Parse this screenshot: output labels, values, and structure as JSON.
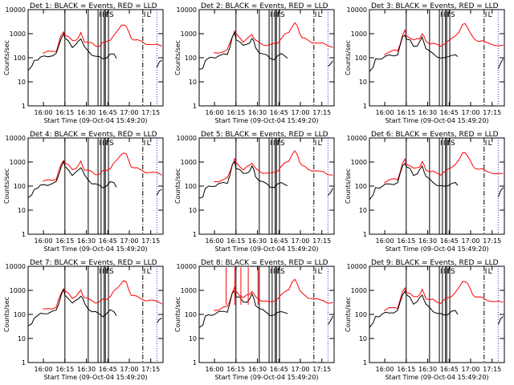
{
  "figure": {
    "background": "#ffffff",
    "colors": {
      "events": "#000000",
      "lld": "#ff0000",
      "markers": "#000000",
      "frame": "#000000"
    }
  },
  "chart_data": [
    {
      "type": "line",
      "title": "Det 1: BLACK = Events, RED = LLD",
      "xlabel": "Start Time (09-Oct-04 15:49:20)",
      "ylabel": "Counts/sec",
      "yscale": "log",
      "ylim": [
        1,
        10000
      ],
      "x_ticks": [
        "16:00",
        "16:15",
        "16:30",
        "16:45",
        "17:00",
        "17:15"
      ],
      "y_ticks": [
        "1",
        "10",
        "100",
        "1000",
        "10000"
      ],
      "marker_labels": [
        "I",
        "I",
        "I",
        "I",
        "S",
        "I",
        "L"
      ],
      "series": [
        {
          "name": "Events",
          "color": "#000000"
        },
        {
          "name": "LLD",
          "color": "#ff0000"
        }
      ]
    },
    {
      "type": "line",
      "title": "Det 2: BLACK = Events, RED = LLD",
      "xlabel": "Start Time (09-Oct-04 15:49:20)",
      "ylabel": "Counts/sec",
      "yscale": "log",
      "ylim": [
        1,
        10000
      ],
      "x_ticks": [
        "16:00",
        "16:15",
        "16:30",
        "16:45",
        "17:00",
        "17:15"
      ],
      "y_ticks": [
        "1",
        "10",
        "100",
        "1000",
        "10000"
      ],
      "marker_labels": [
        "I",
        "I",
        "I",
        "I",
        "S",
        "I",
        "L"
      ],
      "series": [
        {
          "name": "Events",
          "color": "#000000"
        },
        {
          "name": "LLD",
          "color": "#ff0000"
        }
      ]
    },
    {
      "type": "line",
      "title": "Det 3: BLACK = Events, RED = LLD",
      "xlabel": "Start Time (09-Oct-04 15:49:20)",
      "ylabel": "Counts/sec",
      "yscale": "log",
      "ylim": [
        1,
        10000
      ],
      "x_ticks": [
        "16:00",
        "16:15",
        "16:30",
        "16:45",
        "17:00",
        "17:15"
      ],
      "y_ticks": [
        "1",
        "10",
        "100",
        "1000",
        "10000"
      ],
      "marker_labels": [
        "I",
        "I",
        "I",
        "I",
        "S",
        "I",
        "L"
      ],
      "series": [
        {
          "name": "Events",
          "color": "#000000"
        },
        {
          "name": "LLD",
          "color": "#ff0000"
        }
      ]
    },
    {
      "type": "line",
      "title": "Det 4: BLACK = Events, RED = LLD",
      "xlabel": "Start Time (09-Oct-04 15:49:20)",
      "ylabel": "Counts/sec",
      "yscale": "log",
      "ylim": [
        1,
        10000
      ],
      "x_ticks": [
        "16:00",
        "16:15",
        "16:30",
        "16:45",
        "17:00",
        "17:15"
      ],
      "y_ticks": [
        "1",
        "10",
        "100",
        "1000",
        "10000"
      ],
      "marker_labels": [
        "I",
        "I",
        "I",
        "I",
        "S",
        "I",
        "L"
      ],
      "series": [
        {
          "name": "Events",
          "color": "#000000"
        },
        {
          "name": "LLD",
          "color": "#ff0000"
        }
      ]
    },
    {
      "type": "line",
      "title": "Det 5: BLACK = Events, RED = LLD",
      "xlabel": "Start Time (09-Oct-04 15:49:20)",
      "ylabel": "Counts/sec",
      "yscale": "log",
      "ylim": [
        1,
        10000
      ],
      "x_ticks": [
        "16:00",
        "16:15",
        "16:30",
        "16:45",
        "17:00",
        "17:15"
      ],
      "y_ticks": [
        "1",
        "10",
        "100",
        "1000",
        "10000"
      ],
      "marker_labels": [
        "I",
        "I",
        "I",
        "I",
        "S",
        "I",
        "L"
      ],
      "series": [
        {
          "name": "Events",
          "color": "#000000"
        },
        {
          "name": "LLD",
          "color": "#ff0000"
        }
      ]
    },
    {
      "type": "line",
      "title": "Det 6: BLACK = Events, RED = LLD",
      "xlabel": "Start Time (09-Oct-04 15:49:20)",
      "ylabel": "Counts/sec",
      "yscale": "log",
      "ylim": [
        1,
        10000
      ],
      "x_ticks": [
        "16:00",
        "16:15",
        "16:30",
        "16:45",
        "17:00",
        "17:15"
      ],
      "y_ticks": [
        "1",
        "10",
        "100",
        "1000",
        "10000"
      ],
      "marker_labels": [
        "I",
        "I",
        "I",
        "I",
        "S",
        "I",
        "L"
      ],
      "series": [
        {
          "name": "Events",
          "color": "#000000"
        },
        {
          "name": "LLD",
          "color": "#ff0000"
        }
      ]
    },
    {
      "type": "line",
      "title": "Det 7: BLACK = Events, RED = LLD",
      "xlabel": "Start Time (09-Oct-04 15:49:20)",
      "ylabel": "Counts/sec",
      "yscale": "log",
      "ylim": [
        1,
        10000
      ],
      "x_ticks": [
        "16:00",
        "16:15",
        "16:30",
        "16:45",
        "17:00",
        "17:15"
      ],
      "y_ticks": [
        "1",
        "10",
        "100",
        "1000",
        "10000"
      ],
      "marker_labels": [
        "I",
        "I",
        "I",
        "I",
        "S",
        "I",
        "L"
      ],
      "series": [
        {
          "name": "Events",
          "color": "#000000"
        },
        {
          "name": "LLD",
          "color": "#ff0000"
        }
      ]
    },
    {
      "type": "line",
      "title": "Det 8: BLACK = Events, RED = LLD",
      "xlabel": "Start Time (09-Oct-04 15:49:20)",
      "ylabel": "Counts/sec",
      "yscale": "log",
      "ylim": [
        1,
        10000
      ],
      "x_ticks": [
        "16:00",
        "16:15",
        "16:30",
        "16:45",
        "17:00",
        "17:15"
      ],
      "y_ticks": [
        "1",
        "10",
        "100",
        "1000",
        "10000"
      ],
      "marker_labels": [
        "I",
        "I",
        "I",
        "I",
        "S",
        "I",
        "L"
      ],
      "series": [
        {
          "name": "Events",
          "color": "#000000"
        },
        {
          "name": "LLD",
          "color": "#ff0000"
        }
      ]
    },
    {
      "type": "line",
      "title": "Det 9: BLACK = Events, RED = LLD",
      "xlabel": "Start Time (09-Oct-04 15:49:20)",
      "ylabel": "Counts/sec",
      "yscale": "log",
      "ylim": [
        1,
        10000
      ],
      "x_ticks": [
        "16:00",
        "16:15",
        "16:30",
        "16:45",
        "17:00",
        "17:15"
      ],
      "y_ticks": [
        "1",
        "10",
        "100",
        "1000",
        "10000"
      ],
      "marker_labels": [
        "I",
        "I",
        "I",
        "I",
        "S",
        "I",
        "L"
      ],
      "series": [
        {
          "name": "Events",
          "color": "#000000"
        },
        {
          "name": "LLD",
          "color": "#ff0000"
        }
      ]
    }
  ],
  "shared_curves": {
    "lld_points": [
      [
        15.2,
        150
      ],
      [
        15.6,
        170
      ],
      [
        16.0,
        190
      ],
      [
        16.3,
        200
      ],
      [
        16.5,
        400
      ],
      [
        16.7,
        800
      ],
      [
        16.9,
        1300
      ],
      [
        17.0,
        900
      ],
      [
        17.3,
        700
      ],
      [
        17.6,
        500
      ],
      [
        17.9,
        600
      ],
      [
        18.1,
        700
      ],
      [
        18.3,
        1000
      ],
      [
        18.45,
        700
      ],
      [
        18.6,
        500
      ],
      [
        18.9,
        420
      ],
      [
        19.2,
        380
      ],
      [
        19.5,
        330
      ],
      [
        19.8,
        320
      ],
      [
        20.1,
        400
      ],
      [
        20.4,
        450
      ],
      [
        20.7,
        600
      ],
      [
        21.0,
        900
      ],
      [
        21.3,
        1200
      ],
      [
        21.6,
        2200
      ],
      [
        21.8,
        2600
      ],
      [
        22.0,
        2000
      ],
      [
        22.2,
        1100
      ],
      [
        22.4,
        700
      ],
      [
        22.6,
        600
      ],
      [
        22.9,
        520
      ],
      [
        23.2,
        470
      ],
      [
        23.6,
        400
      ],
      [
        24.1,
        370
      ],
      [
        24.5,
        330
      ],
      [
        24.9,
        300
      ]
    ],
    "events_points": [
      [
        14.0,
        30
      ],
      [
        14.3,
        40
      ],
      [
        14.5,
        80
      ],
      [
        14.8,
        90
      ],
      [
        15.0,
        100
      ],
      [
        15.3,
        110
      ],
      [
        15.6,
        120
      ],
      [
        16.0,
        130
      ],
      [
        16.3,
        140
      ],
      [
        16.5,
        300
      ],
      [
        16.7,
        700
      ],
      [
        16.9,
        1000
      ],
      [
        17.0,
        600
      ],
      [
        17.3,
        500
      ],
      [
        17.6,
        300
      ],
      [
        17.9,
        350
      ],
      [
        18.1,
        450
      ],
      [
        18.3,
        650
      ],
      [
        18.45,
        450
      ],
      [
        18.6,
        260
      ],
      [
        18.9,
        180
      ],
      [
        19.2,
        140
      ],
      [
        19.5,
        120
      ],
      [
        19.8,
        100
      ],
      [
        20.1,
        90
      ],
      [
        20.4,
        110
      ],
      [
        20.7,
        140
      ],
      [
        21.0,
        130
      ],
      [
        21.2,
        100
      ]
    ],
    "tail_points": [
      [
        24.5,
        40
      ],
      [
        24.7,
        60
      ],
      [
        24.9,
        80
      ]
    ],
    "solid_marker_times": [
      17.0,
      18.9,
      19.7,
      19.95,
      20.2,
      20.3,
      20.55
    ],
    "dashed_marker_time": 23.35,
    "dotted_marker_time": 24.5
  }
}
